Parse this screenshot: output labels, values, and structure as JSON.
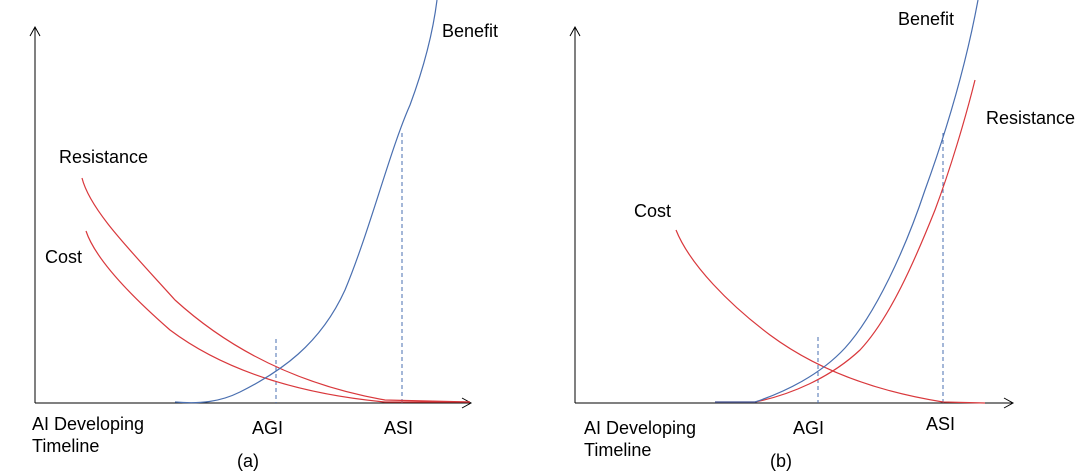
{
  "panel_a": {
    "caption": "(a)",
    "x_axis_label_line1": "AI Developing",
    "x_axis_label_line2": "Timeline",
    "milestones": [
      "AGI",
      "ASI"
    ],
    "curves": {
      "benefit": "Benefit",
      "resistance": "Resistance",
      "cost": "Cost"
    }
  },
  "panel_b": {
    "caption": "(b)",
    "x_axis_label_line1": "AI Developing",
    "x_axis_label_line2": "Timeline",
    "milestones": [
      "AGI",
      "ASI"
    ],
    "curves": {
      "benefit": "Benefit",
      "resistance": "Resistance",
      "cost": "Cost"
    }
  },
  "colors": {
    "benefit": "#4a6fb0",
    "resistance": "#d9383c",
    "cost": "#d9383c",
    "axis": "#000000"
  }
}
